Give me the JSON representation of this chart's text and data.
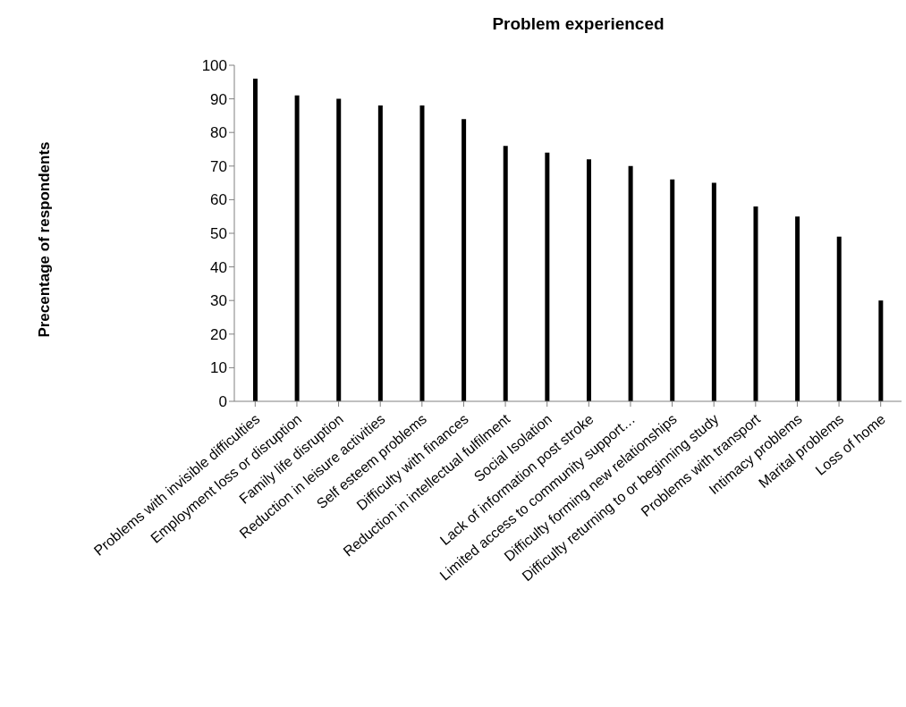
{
  "chart_data": {
    "type": "bar",
    "title": "Problem experienced",
    "ylabel": "Precentage of respondents",
    "categories": [
      "Problems with invisible difficulties",
      "Employment loss or disruption",
      "Family life disruption",
      "Reduction in leisure activities",
      "Self esteem problems",
      "Difficulty with finances",
      "Reduction in intellectual fulfilment",
      "Social Isolation",
      "Lack of information post stroke",
      "Limited access to community support…",
      "Difficulty forming new relationships",
      "Difficulty returning to or beginning study",
      "Problems with transport",
      "Intimacy problems",
      "Marital problems",
      "Loss of home"
    ],
    "values": [
      96,
      91,
      90,
      88,
      88,
      84,
      76,
      74,
      72,
      70,
      66,
      65,
      58,
      55,
      49,
      30
    ],
    "color": "#000000",
    "ylim": [
      0,
      100
    ],
    "yticks": [
      0,
      10,
      20,
      30,
      40,
      50,
      60,
      70,
      80,
      90,
      100
    ],
    "grid": false,
    "legend": false
  }
}
